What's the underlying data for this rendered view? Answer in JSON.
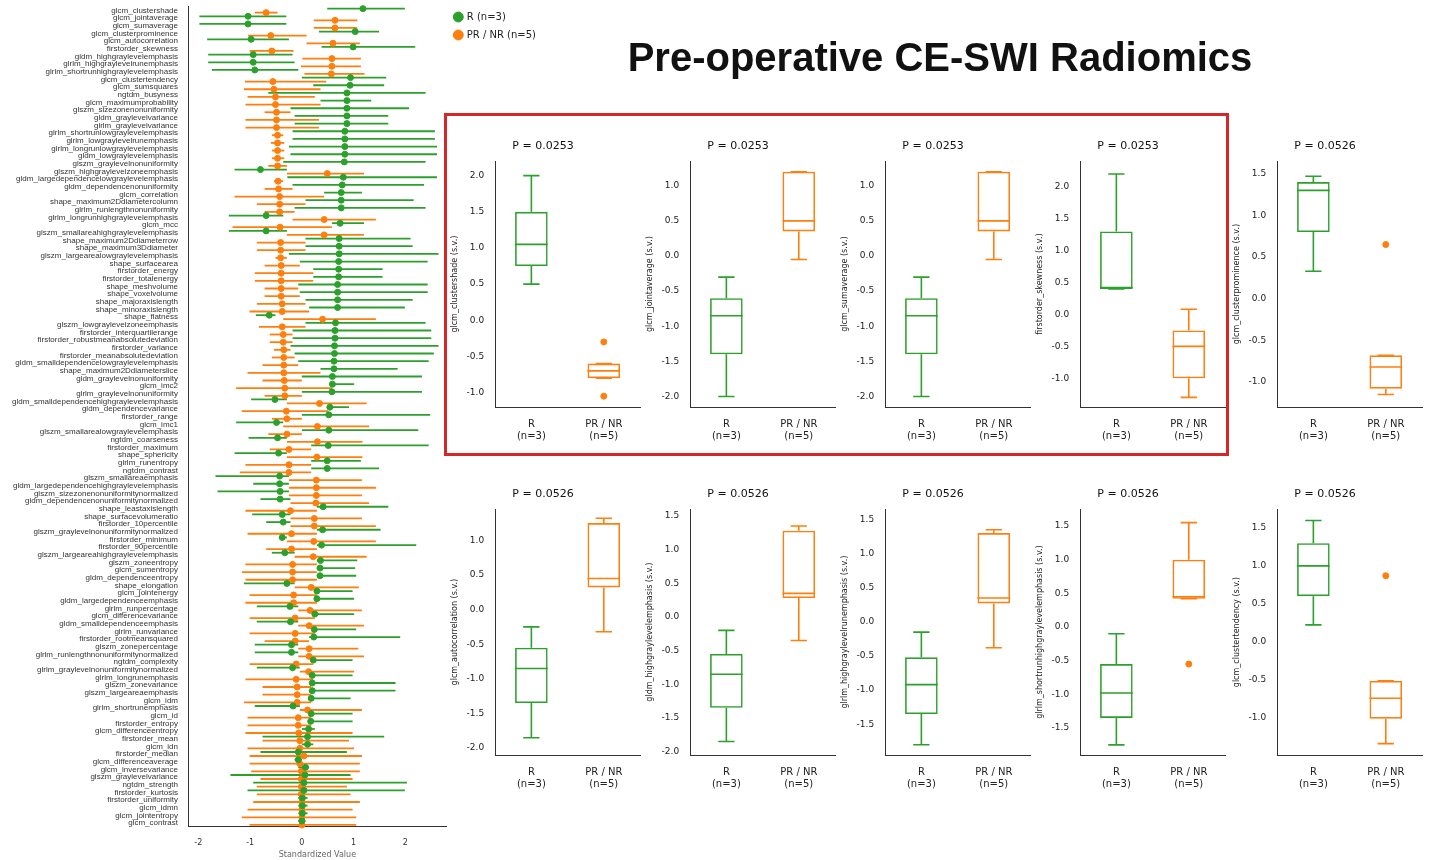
{
  "chart_data": [
    {
      "type": "other",
      "title": "Pre-operative CE-SWI Radiomics"
    },
    {
      "type": "scatter",
      "orientation": "horizontal",
      "xlabel": "Standardized Value",
      "marker": "circle",
      "legend": "top right",
      "xlim": [
        -2.2,
        2.8
      ],
      "xticks": [
        -2,
        -1,
        0,
        1,
        2
      ],
      "categories": [
        "glcm_clustershade",
        "glcm_jointaverage",
        "glcm_sumaverage",
        "glcm_clusterprominence",
        "glcm_autocorrelation",
        "firstorder_skewness",
        "gldm_highgraylevelemphasis",
        "glrlm_highgraylevelrunemphasis",
        "glrlm_shortrunhighgraylevelemphasis",
        "glcm_clustertendency",
        "glcm_sumsquares",
        "ngtdm_busyness",
        "glcm_maximumprobability",
        "glszm_sizezonenonuniformity",
        "gldm_graylevelvariance",
        "glrlm_graylevelvariance",
        "glrlm_shortrunlowgraylevelemphasis",
        "glrlm_lowgraylevelrunemphasis",
        "glrlm_longrunlowgraylevelemphasis",
        "gldm_lowgraylevelemphasis",
        "glszm_graylevelnonuniformity",
        "glszm_highgraylevelzoneemphasis",
        "gldm_largedependencelowgraylevelemphasis",
        "gldm_dependencenonuniformity",
        "glcm_correlation",
        "shape_maximum2Ddiametercolumn",
        "glrlm_runlengthnonuniformity",
        "glrlm_longrunhighgraylevelemphasis",
        "glcm_mcc",
        "glszm_smallareahighgraylevelemphasis",
        "shape_maximum2Ddiameterrow",
        "shape_maximum3Ddiameter",
        "glszm_largearealowgraylevelemphasis",
        "shape_surfacearea",
        "firstorder_energy",
        "firstorder_totalenergy",
        "shape_meshvolume",
        "shape_voxelvolume",
        "shape_majoraxislength",
        "shape_minoraxislength",
        "shape_flatness",
        "glszm_lowgraylevelzoneemphasis",
        "firstorder_interquartilerange",
        "firstorder_robustmeanabsolutedeviation",
        "firstorder_variance",
        "firstorder_meanabsolutedeviation",
        "gldm_smalldependencelowgraylevelemphasis",
        "shape_maximum2Ddiameterslice",
        "gldm_graylevelnonuniformity",
        "glcm_imc2",
        "glrlm_graylevelnonuniformity",
        "gldm_smalldependencehighgraylevelemphasis",
        "gldm_dependencevariance",
        "firstorder_range",
        "glcm_imc1",
        "glszm_smallarealowgraylevelemphasis",
        "ngtdm_coarseness",
        "firstorder_maximum",
        "shape_sphericity",
        "glrlm_runentropy",
        "ngtdm_contrast",
        "glszm_smallareaemphasis",
        "gldm_largedependencehighgraylevelemphasis",
        "glszm_sizezonenonuniformitynormalized",
        "gldm_dependencenonuniformitynormalized",
        "shape_leastaxislength",
        "shape_surfacevolumeratio",
        "firstorder_10percentile",
        "glszm_graylevelnonuniformitynormalized",
        "firstorder_minimum",
        "firstorder_90percentile",
        "glszm_largeareahighgraylevelemphasis",
        "glszm_zoneentropy",
        "glcm_sumentropy",
        "gldm_dependenceentropy",
        "shape_elongation",
        "glcm_jointenergy",
        "gldm_largedependenceemphasis",
        "glrlm_runpercentage",
        "glcm_differencevariance",
        "gldm_smalldependenceemphasis",
        "glrlm_runvariance",
        "firstorder_rootmeansquared",
        "glszm_zonepercentage",
        "glrlm_runlengthnonuniformitynormalized",
        "ngtdm_complexity",
        "glrlm_graylevelnonuniformitynormalized",
        "glrlm_longrunemphasis",
        "glszm_zonevariance",
        "glszm_largeareaemphasis",
        "glcm_idm",
        "glrlm_shortrunemphasis",
        "glcm_id",
        "firstorder_entropy",
        "glcm_differenceentropy",
        "firstorder_mean",
        "glcm_idn",
        "firstorder_median",
        "glcm_differenceaverage",
        "glcm_inversevariance",
        "glszm_graylevelvariance",
        "ngtdm_strength",
        "firstorder_kurtosis",
        "firstorder_uniformity",
        "glcm_idmn",
        "glcm_jointentropy",
        "glcm_contrast"
      ],
      "series": [
        {
          "name": "R (n=3)",
          "color": "#2ca02c",
          "values": [
            1.18,
            -1.04,
            -1.04,
            1.03,
            -0.98,
            0.99,
            -0.94,
            -0.94,
            -0.91,
            0.94,
            0.93,
            0.87,
            0.87,
            0.87,
            0.87,
            0.87,
            0.83,
            0.83,
            0.83,
            0.83,
            0.82,
            -0.8,
            0.8,
            0.78,
            0.76,
            0.76,
            0.76,
            -0.69,
            0.74,
            -0.69,
            0.72,
            0.72,
            0.72,
            0.71,
            0.71,
            0.71,
            0.69,
            0.69,
            0.69,
            0.69,
            -0.63,
            0.65,
            0.64,
            0.64,
            0.63,
            0.63,
            0.62,
            0.62,
            0.59,
            0.59,
            0.58,
            -0.52,
            0.54,
            0.52,
            -0.49,
            0.52,
            -0.47,
            0.51,
            -0.45,
            0.49,
            0.49,
            -0.43,
            -0.43,
            -0.42,
            -0.42,
            0.41,
            -0.38,
            -0.36,
            0.4,
            -0.38,
            0.38,
            -0.33,
            0.36,
            0.35,
            0.35,
            -0.29,
            0.29,
            0.29,
            -0.23,
            0.25,
            -0.22,
            0.24,
            0.23,
            -0.2,
            -0.2,
            0.22,
            -0.18,
            0.2,
            0.2,
            0.2,
            0.18,
            -0.17,
            0.18,
            0.17,
            0.13,
            0.11,
            0.11,
            -0.07,
            -0.07,
            0.07,
            0.06,
            0.04,
            0.04,
            0.01,
            0.01,
            0.01,
            0
          ],
          "errors": [
            [
              0.49,
              1.99
            ],
            [
              -1.98,
              -0.3
            ],
            [
              -1.98,
              -0.3
            ],
            [
              0.33,
              1.49
            ],
            [
              -1.83,
              -0.25
            ],
            [
              0.38,
              2.19
            ],
            [
              -1.81,
              -0.18
            ],
            [
              -1.81,
              -0.14
            ],
            [
              -1.74,
              -0.07
            ],
            [
              0,
              1.63
            ],
            [
              0.22,
              1.59
            ],
            [
              -0.65,
              2.39
            ],
            [
              0.36,
              1.34
            ],
            [
              -0.22,
              2.07
            ],
            [
              -0.14,
              1.67
            ],
            [
              -0.14,
              1.67
            ],
            [
              -0.18,
              2.57
            ],
            [
              -0.18,
              2.57
            ],
            [
              -0.25,
              2.61
            ],
            [
              -0.22,
              2.61
            ],
            [
              -0.36,
              2.39
            ],
            [
              -1.3,
              -0.29
            ],
            [
              -0.28,
              2.61
            ],
            [
              -0.18,
              2.36
            ],
            [
              0.43,
              1.16
            ],
            [
              0.07,
              2.16
            ],
            [
              -0.14,
              2.39
            ],
            [
              -1.41,
              -0.36
            ],
            [
              0.58,
              1.2
            ],
            [
              -1.41,
              -0.29
            ],
            [
              0.07,
              2.1
            ],
            [
              0.07,
              2.14
            ],
            [
              -0.25,
              2.64
            ],
            [
              -0.04,
              2.43
            ],
            [
              0.22,
              1.56
            ],
            [
              0.22,
              1.56
            ],
            [
              -0.07,
              2.43
            ],
            [
              -0.04,
              2.43
            ],
            [
              0.07,
              2.14
            ],
            [
              0.14,
              1.99
            ],
            [
              -0.89,
              -0.51
            ],
            [
              0.07,
              2.39
            ],
            [
              -0.18,
              2.5
            ],
            [
              -0.18,
              2.5
            ],
            [
              -0.22,
              2.64
            ],
            [
              -0.14,
              2.55
            ],
            [
              -0.07,
              2.45
            ],
            [
              0.36,
              1.85
            ],
            [
              0,
              2.32
            ],
            [
              0.58,
              1.01
            ],
            [
              0,
              2.32
            ],
            [
              -0.98,
              -0.29
            ],
            [
              0.51,
              0.91
            ],
            [
              0,
              2.48
            ],
            [
              -1.27,
              -0.36
            ],
            [
              0,
              2.25
            ],
            [
              -1.03,
              -0.29
            ],
            [
              0.18,
              2.45
            ],
            [
              -1.3,
              -0.29
            ],
            [
              0.18,
              1.14
            ],
            [
              0.18,
              1.49
            ],
            [
              -1.67,
              -0.25
            ],
            [
              -0.94,
              -0.25
            ],
            [
              -1.63,
              -0.25
            ],
            [
              -0.8,
              -0.22
            ],
            [
              0.29,
              1.67
            ],
            [
              -0.96,
              -0.22
            ],
            [
              -0.69,
              -0.22
            ],
            [
              0.29,
              1.52
            ],
            [
              -0.43,
              -0.29
            ],
            [
              0.29,
              2.21
            ],
            [
              -0.58,
              -0.14
            ],
            [
              0.29,
              1.07
            ],
            [
              0.29,
              1.03
            ],
            [
              0.29,
              1.05
            ],
            [
              -1.12,
              -0.14
            ],
            [
              0.29,
              0.98
            ],
            [
              0.29,
              1.01
            ],
            [
              -0.87,
              -0.07
            ],
            [
              0.25,
              1.01
            ],
            [
              -0.87,
              -0.07
            ],
            [
              0.24,
              1.05
            ],
            [
              0.14,
              1.9
            ],
            [
              -0.91,
              -0.07
            ],
            [
              -0.91,
              -0.07
            ],
            [
              0.22,
              0.98
            ],
            [
              -0.87,
              -0.04
            ],
            [
              0.2,
              0.98
            ],
            [
              0.18,
              1.81
            ],
            [
              0.18,
              1.81
            ],
            [
              0.18,
              0.94
            ],
            [
              -0.91,
              -0.04
            ],
            [
              0.18,
              0.98
            ],
            [
              0.17,
              0.98
            ],
            [
              0,
              0.25
            ],
            [
              -0.76,
              1.59
            ],
            [
              0,
              0.22
            ],
            [
              -0.8,
              0.87
            ],
            [
              -0.14,
              0
            ],
            [
              -0.07,
              0.14
            ],
            [
              -1.38,
              0.94
            ],
            [
              -0.94,
              2.03
            ],
            [
              -1.05,
              1.99
            ],
            [
              -0.07,
              0.11
            ],
            [
              -0.07,
              0.11
            ],
            [
              -0.07,
              0.11
            ],
            [
              -0.07,
              0.07
            ]
          ]
        },
        {
          "name": "PR / NR (n=5)",
          "color": "#ff7f0e",
          "values": [
            -0.69,
            0.64,
            0.64,
            -0.6,
            0.6,
            -0.58,
            0.58,
            0.58,
            0.57,
            -0.56,
            -0.54,
            -0.51,
            -0.51,
            -0.49,
            -0.49,
            -0.49,
            -0.47,
            -0.47,
            -0.47,
            -0.47,
            -0.47,
            0.49,
            -0.46,
            -0.45,
            -0.43,
            -0.43,
            -0.43,
            0.43,
            -0.42,
            0.43,
            -0.41,
            -0.41,
            -0.41,
            -0.4,
            -0.4,
            -0.4,
            -0.4,
            -0.4,
            -0.38,
            -0.38,
            0.4,
            -0.38,
            -0.36,
            -0.36,
            -0.35,
            -0.35,
            -0.35,
            -0.35,
            -0.34,
            -0.33,
            -0.33,
            0.34,
            -0.3,
            -0.29,
            0.3,
            -0.29,
            0.3,
            -0.25,
            0.29,
            -0.25,
            -0.25,
            0.28,
            0.28,
            0.28,
            0.27,
            -0.22,
            0.24,
            0.24,
            -0.2,
            0.23,
            -0.2,
            0.22,
            -0.18,
            -0.18,
            -0.18,
            0.18,
            -0.16,
            -0.16,
            0.16,
            -0.13,
            0.14,
            -0.13,
            -0.13,
            0.14,
            0.14,
            -0.11,
            0.13,
            -0.11,
            -0.09,
            -0.09,
            -0.09,
            0.11,
            -0.07,
            -0.07,
            -0.06,
            -0.04,
            -0.04,
            0.04,
            -0.04,
            -0.01,
            -0.01,
            -0.01,
            -0.01,
            0,
            0,
            0,
            0
          ],
          "errors": [
            [
              -0.91,
              -0.47
            ],
            [
              0.23,
              1.07
            ],
            [
              0.23,
              1.07
            ],
            [
              -1.04,
              0.09
            ],
            [
              0.09,
              1.12
            ],
            [
              -1.01,
              -0.16
            ],
            [
              0.01,
              1.14
            ],
            [
              -0.02,
              1.14
            ],
            [
              0.05,
              1.21
            ],
            [
              -1.1,
              0.47
            ],
            [
              -1.12,
              0.36
            ],
            [
              -1.05,
              0.25
            ],
            [
              -1.09,
              0.36
            ],
            [
              -0.72,
              -0.22
            ],
            [
              -1.09,
              0.33
            ],
            [
              -1.09,
              0.33
            ],
            [
              -0.58,
              -0.36
            ],
            [
              -0.6,
              -0.34
            ],
            [
              -0.58,
              -0.34
            ],
            [
              -0.58,
              -0.34
            ],
            [
              -0.65,
              -0.29
            ],
            [
              -0.29,
              1.2
            ],
            [
              -0.54,
              -0.36
            ],
            [
              -0.72,
              -0.18
            ],
            [
              -1.3,
              0.43
            ],
            [
              -0.87,
              0.07
            ],
            [
              -0.72,
              -0.14
            ],
            [
              -0.18,
              1.43
            ],
            [
              -1.34,
              0.58
            ],
            [
              -0.29,
              1.2
            ],
            [
              -0.87,
              0.07
            ],
            [
              -0.87,
              0.07
            ],
            [
              -0.51,
              -0.29
            ],
            [
              -0.72,
              -0.04
            ],
            [
              -0.91,
              0.22
            ],
            [
              -0.91,
              0.22
            ],
            [
              -0.72,
              -0.07
            ],
            [
              -0.72,
              -0.04
            ],
            [
              -0.87,
              0.07
            ],
            [
              -1.01,
              0.14
            ],
            [
              -0.36,
              1.43
            ],
            [
              -0.83,
              0.07
            ],
            [
              -0.62,
              -0.18
            ],
            [
              -0.62,
              -0.18
            ],
            [
              -0.54,
              -0.22
            ],
            [
              -0.58,
              -0.14
            ],
            [
              -0.76,
              -0.07
            ],
            [
              -1.05,
              0.36
            ],
            [
              -0.76,
              0
            ],
            [
              -1.27,
              0.58
            ],
            [
              -0.72,
              0
            ],
            [
              -0.29,
              1.25
            ],
            [
              -1.16,
              0.51
            ],
            [
              -0.58,
              0
            ],
            [
              -0.36,
              1.3
            ],
            [
              -0.65,
              0
            ],
            [
              -0.29,
              1.17
            ],
            [
              -0.62,
              0.18
            ],
            [
              -0.29,
              1.17
            ],
            [
              -1.09,
              0.18
            ],
            [
              -1.2,
              0.18
            ],
            [
              -0.25,
              1.16
            ],
            [
              -0.25,
              1.43
            ],
            [
              -0.25,
              1.16
            ],
            [
              -0.22,
              1.3
            ],
            [
              -1.09,
              0.29
            ],
            [
              -0.22,
              1.16
            ],
            [
              -0.22,
              1.43
            ],
            [
              -1.05,
              0.29
            ],
            [
              -0.29,
              1.43
            ],
            [
              -0.69,
              0.29
            ],
            [
              -0.14,
              1.25
            ],
            [
              -1.09,
              0.29
            ],
            [
              -1.16,
              0.29
            ],
            [
              -1.09,
              0.29
            ],
            [
              -0.14,
              1.1
            ],
            [
              -1.01,
              0.29
            ],
            [
              -1.09,
              0.29
            ],
            [
              -0.07,
              1.16
            ],
            [
              -1.01,
              0.25
            ],
            [
              -0.07,
              1.2
            ],
            [
              -1.01,
              0.25
            ],
            [
              -0.72,
              0.14
            ],
            [
              -0.07,
              1.09
            ],
            [
              -0.07,
              1.2
            ],
            [
              -1.01,
              0.22
            ],
            [
              -0.04,
              1.01
            ],
            [
              -1.09,
              0.22
            ],
            [
              -0.76,
              0.18
            ],
            [
              -0.76,
              0.18
            ],
            [
              -1.12,
              0.18
            ],
            [
              -0.04,
              1.16
            ],
            [
              -1.05,
              0.18
            ],
            [
              -1.05,
              0.18
            ],
            [
              -1.09,
              0.98
            ],
            [
              -0.76,
              0.91
            ],
            [
              -1.05,
              1.01
            ],
            [
              -1.01,
              1.16
            ],
            [
              -1.01,
              1.12
            ],
            [
              -0.98,
              1.12
            ],
            [
              -0.8,
              0.98
            ],
            [
              -0.87,
              0.87
            ],
            [
              -0.87,
              0.94
            ],
            [
              -0.94,
              1.12
            ],
            [
              -1.05,
              0.98
            ],
            [
              -1.16,
              1.05
            ],
            [
              -1.01,
              1.05
            ]
          ]
        }
      ]
    },
    {
      "type": "box",
      "title": "P = 0.0253",
      "ylabel": "glcm_clustershade (s.v.)",
      "categories": [
        "R\n(n=3)",
        "PR / NR\n(n=5)"
      ],
      "colors": [
        "#2ca02c",
        "#ff7f0e"
      ],
      "ylim": [
        -1.2,
        2.2
      ],
      "yticks": [
        {
          "value": -1,
          "label": "-1.0"
        },
        {
          "value": -0.5,
          "label": "-0.5"
        },
        {
          "value": 0,
          "label": "0.0"
        },
        {
          "value": 0.5,
          "label": "0.5"
        },
        {
          "value": 1,
          "label": "1.0"
        },
        {
          "value": 1.5,
          "label": "1.5"
        },
        {
          "value": 2,
          "label": "2.0"
        }
      ],
      "boxes": [
        {
          "low": 0.5,
          "q1": 0.75,
          "median": 1.05,
          "q3": 1.5,
          "high": 2.0
        },
        {
          "low": -0.8,
          "q1": -0.8,
          "median": -0.7,
          "q3": -0.6,
          "high": -0.6,
          "outliers": [
            -0.3,
            -1.05
          ]
        }
      ]
    },
    {
      "type": "box",
      "title": "P = 0.0253",
      "ylabel": "glcm_jointaverage (s.v.)",
      "categories": [
        "R\n(n=3)",
        "PR / NR\n(n=5)"
      ],
      "colors": [
        "#2ca02c",
        "#ff7f0e"
      ],
      "ylim": [
        -2.15,
        1.35
      ],
      "yticks": [
        {
          "value": -2,
          "label": "-2.0"
        },
        {
          "value": -1.5,
          "label": "-1.5"
        },
        {
          "value": -1,
          "label": "-1.0"
        },
        {
          "value": -0.5,
          "label": "-0.5"
        },
        {
          "value": 0,
          "label": "0.0"
        },
        {
          "value": 0.5,
          "label": "0.5"
        },
        {
          "value": 1,
          "label": "1.0"
        }
      ],
      "boxes": [
        {
          "low": -2.0,
          "q1": -1.4,
          "median": -0.85,
          "q3": -0.6,
          "high": -0.3
        },
        {
          "low": -0.05,
          "q1": 0.35,
          "median": 0.5,
          "q3": 1.2,
          "high": 1.2
        }
      ]
    },
    {
      "type": "box",
      "title": "P = 0.0253",
      "ylabel": "glcm_sumaverage (s.v.)",
      "categories": [
        "R\n(n=3)",
        "PR / NR\n(n=5)"
      ],
      "colors": [
        "#2ca02c",
        "#ff7f0e"
      ],
      "ylim": [
        -2.15,
        1.35
      ],
      "yticks": [
        {
          "value": -2,
          "label": "-2.0"
        },
        {
          "value": -1.5,
          "label": "-1.5"
        },
        {
          "value": -1,
          "label": "-1.0"
        },
        {
          "value": -0.5,
          "label": "-0.5"
        },
        {
          "value": 0,
          "label": "0.0"
        },
        {
          "value": 0.5,
          "label": "0.5"
        },
        {
          "value": 1,
          "label": "1.0"
        }
      ],
      "boxes": [
        {
          "low": -2.0,
          "q1": -1.4,
          "median": -0.85,
          "q3": -0.6,
          "high": -0.3
        },
        {
          "low": -0.05,
          "q1": 0.35,
          "median": 0.5,
          "q3": 1.2,
          "high": 1.2
        }
      ]
    },
    {
      "type": "box",
      "title": "P = 0.0253",
      "ylabel": "firstorder_skewness (s.v.)",
      "categories": [
        "R\n(n=3)",
        "PR / NR\n(n=5)"
      ],
      "colors": [
        "#2ca02c",
        "#ff7f0e"
      ],
      "ylim": [
        -1.45,
        2.4
      ],
      "yticks": [
        {
          "value": -1,
          "label": "-1.0"
        },
        {
          "value": -0.5,
          "label": "-0.5"
        },
        {
          "value": 0,
          "label": "0.0"
        },
        {
          "value": 0.5,
          "label": "0.5"
        },
        {
          "value": 1,
          "label": "1.0"
        },
        {
          "value": 1.5,
          "label": "1.5"
        },
        {
          "value": 2,
          "label": "2.0"
        }
      ],
      "boxes": [
        {
          "low": 0.4,
          "q1": 0.4,
          "median": 0.42,
          "q3": 1.3,
          "high": 2.2
        },
        {
          "low": -1.3,
          "q1": -1.0,
          "median": -0.5,
          "q3": -0.25,
          "high": 0.08
        }
      ]
    },
    {
      "type": "box",
      "title": "P = 0.0526",
      "ylabel": "glcm_clusterprominence (s.v.)",
      "categories": [
        "R\n(n=3)",
        "PR / NR\n(n=5)"
      ],
      "colors": [
        "#2ca02c",
        "#ff7f0e"
      ],
      "ylim": [
        -1.3,
        1.65
      ],
      "yticks": [
        {
          "value": -1,
          "label": "-1.0"
        },
        {
          "value": -0.5,
          "label": "-0.5"
        },
        {
          "value": 0,
          "label": "0.0"
        },
        {
          "value": 0.5,
          "label": "0.5"
        },
        {
          "value": 1,
          "label": "1.0"
        },
        {
          "value": 1.5,
          "label": "1.5"
        }
      ],
      "boxes": [
        {
          "low": 0.33,
          "q1": 0.8,
          "median": 1.3,
          "q3": 1.4,
          "high": 1.47
        },
        {
          "low": -1.15,
          "q1": -1.08,
          "median": -0.82,
          "q3": -0.68,
          "high": -0.68,
          "outliers": [
            0.65
          ]
        }
      ]
    },
    {
      "type": "box",
      "title": "P = 0.0526",
      "ylabel": "glcm_autocorrelation (s.v.)",
      "categories": [
        "R\n(n=3)",
        "PR / NR\n(n=5)"
      ],
      "colors": [
        "#2ca02c",
        "#ff7f0e"
      ],
      "ylim": [
        -2.1,
        1.45
      ],
      "yticks": [
        {
          "value": -2,
          "label": "-2.0"
        },
        {
          "value": -1.5,
          "label": "-1.5"
        },
        {
          "value": -1,
          "label": "-1.0"
        },
        {
          "value": -0.5,
          "label": "-0.5"
        },
        {
          "value": 0,
          "label": "0.0"
        },
        {
          "value": 0.5,
          "label": "0.5"
        },
        {
          "value": 1,
          "label": "1.0"
        }
      ],
      "boxes": [
        {
          "low": -1.85,
          "q1": -1.35,
          "median": -0.85,
          "q3": -0.55,
          "high": -0.25
        },
        {
          "low": -0.32,
          "q1": 0.32,
          "median": 0.45,
          "q3": 1.25,
          "high": 1.32
        }
      ]
    },
    {
      "type": "box",
      "title": "P = 0.0526",
      "ylabel": "gldm_highgraylevelemphasis (s.v.)",
      "categories": [
        "R\n(n=3)",
        "PR / NR\n(n=5)"
      ],
      "colors": [
        "#2ca02c",
        "#ff7f0e"
      ],
      "ylim": [
        -2.05,
        1.6
      ],
      "yticks": [
        {
          "value": -2,
          "label": "-2.0"
        },
        {
          "value": -1.5,
          "label": "-1.5"
        },
        {
          "value": -1,
          "label": "-1.0"
        },
        {
          "value": -0.5,
          "label": "-0.5"
        },
        {
          "value": 0,
          "label": "0.0"
        },
        {
          "value": 0.5,
          "label": "0.5"
        },
        {
          "value": 1,
          "label": "1.0"
        },
        {
          "value": 1.5,
          "label": "1.5"
        }
      ],
      "boxes": [
        {
          "low": -1.85,
          "q1": -1.35,
          "median": -0.85,
          "q3": -0.55,
          "high": -0.2
        },
        {
          "low": -0.35,
          "q1": 0.28,
          "median": 0.35,
          "q3": 1.28,
          "high": 1.35
        }
      ]
    },
    {
      "type": "box",
      "title": "P = 0.0526",
      "ylabel": "glrlm_highgraylevelrunemphasis (s.v.)",
      "categories": [
        "R\n(n=3)",
        "PR / NR\n(n=5)"
      ],
      "colors": [
        "#2ca02c",
        "#ff7f0e"
      ],
      "ylim": [
        -1.95,
        1.65
      ],
      "yticks": [
        {
          "value": -1.5,
          "label": "-1.5"
        },
        {
          "value": -1,
          "label": "-1.0"
        },
        {
          "value": -0.5,
          "label": "-0.5"
        },
        {
          "value": 0,
          "label": "0.0"
        },
        {
          "value": 0.5,
          "label": "0.5"
        },
        {
          "value": 1,
          "label": "1.0"
        },
        {
          "value": 1.5,
          "label": "1.5"
        }
      ],
      "boxes": [
        {
          "low": -1.8,
          "q1": -1.35,
          "median": -0.92,
          "q3": -0.52,
          "high": -0.15
        },
        {
          "low": -0.38,
          "q1": 0.27,
          "median": 0.35,
          "q3": 1.3,
          "high": 1.35
        }
      ]
    },
    {
      "type": "box",
      "title": "P = 0.0526",
      "ylabel": "glrlm_shortrunhighgraylevelemphasis (s.v.)",
      "categories": [
        "R\n(n=3)",
        "PR / NR\n(n=5)"
      ],
      "colors": [
        "#2ca02c",
        "#ff7f0e"
      ],
      "ylim": [
        -1.9,
        1.75
      ],
      "yticks": [
        {
          "value": -1.5,
          "label": "-1.5"
        },
        {
          "value": -1,
          "label": "-1.0"
        },
        {
          "value": -0.5,
          "label": "-0.5"
        },
        {
          "value": 0,
          "label": "0.0"
        },
        {
          "value": 0.5,
          "label": "0.5"
        },
        {
          "value": 1,
          "label": "1.0"
        },
        {
          "value": 1.5,
          "label": "1.5"
        }
      ],
      "boxes": [
        {
          "low": -1.75,
          "q1": -1.35,
          "median": -0.98,
          "q3": -0.55,
          "high": -0.1
        },
        {
          "low": 0.42,
          "q1": 0.42,
          "median": 0.45,
          "q3": 1.0,
          "high": 1.55,
          "outliers": [
            -0.55
          ]
        }
      ]
    },
    {
      "type": "box",
      "title": "P = 0.0526",
      "ylabel": "glcm_clustertendency (s.v.)",
      "categories": [
        "R\n(n=3)",
        "PR / NR\n(n=5)"
      ],
      "colors": [
        "#2ca02c",
        "#ff7f0e"
      ],
      "ylim": [
        -1.5,
        1.75
      ],
      "yticks": [
        {
          "value": -1,
          "label": "-1.0"
        },
        {
          "value": -0.5,
          "label": "-0.5"
        },
        {
          "value": 0,
          "label": "0.0"
        },
        {
          "value": 0.5,
          "label": "0.5"
        },
        {
          "value": 1,
          "label": "1.0"
        },
        {
          "value": 1.5,
          "label": "1.5"
        }
      ],
      "boxes": [
        {
          "low": 0.22,
          "q1": 0.6,
          "median": 1.0,
          "q3": 1.3,
          "high": 1.6
        },
        {
          "low": -1.35,
          "q1": -1.02,
          "median": -0.75,
          "q3": -0.52,
          "high": -0.52,
          "outliers": [
            0.87
          ]
        }
      ]
    }
  ]
}
